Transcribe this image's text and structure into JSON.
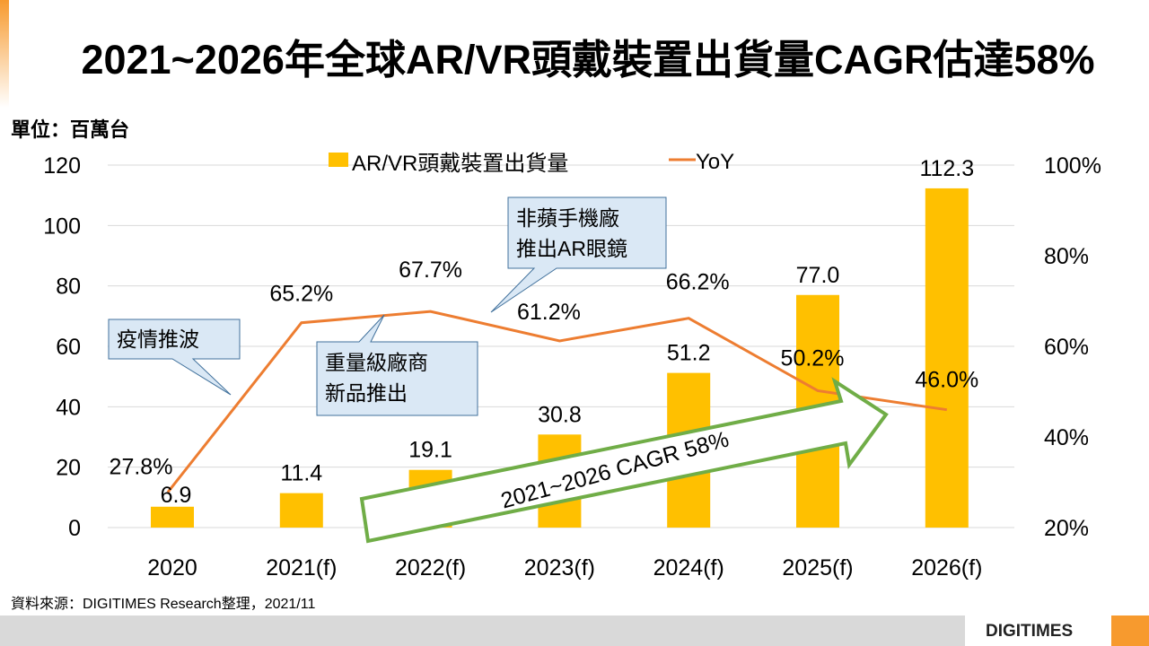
{
  "title": "2021~2026年全球AR/VR頭戴裝置出貨量CAGR估達58%",
  "source": "資料來源：DIGITIMES Research整理，2021/11",
  "logo": "DIGITIMES",
  "colors": {
    "bar": "#FFC000",
    "line": "#ED7D31",
    "arrow": "#70AD47",
    "accent": "#F79A2E",
    "callout_fill": "#DAE8F5",
    "callout_border": "#41719C"
  },
  "chart_data": {
    "type": "bar+line",
    "unit_label": "單位：百萬台",
    "categories": [
      "2020",
      "2021(f)",
      "2022(f)",
      "2023(f)",
      "2024(f)",
      "2025(f)",
      "2026(f)"
    ],
    "series": [
      {
        "name": "AR/VR頭戴裝置出貨量",
        "type": "bar",
        "axis": "left",
        "values": [
          6.9,
          11.4,
          19.1,
          30.8,
          51.2,
          77.0,
          112.3
        ],
        "labels": [
          "6.9",
          "11.4",
          "19.1",
          "30.8",
          "51.2",
          "77.0",
          "112.3"
        ]
      },
      {
        "name": "YoY",
        "type": "line",
        "axis": "right",
        "values": [
          27.8,
          65.2,
          67.7,
          61.2,
          66.2,
          50.2,
          46.0
        ],
        "labels": [
          "27.8%",
          "65.2%",
          "67.7%",
          "61.2%",
          "66.2%",
          "50.2%",
          "46.0%"
        ]
      }
    ],
    "ylim": [
      0,
      120
    ],
    "yticks": [
      "0",
      "20",
      "40",
      "60",
      "80",
      "100",
      "120"
    ],
    "y2lim": [
      20,
      100
    ],
    "y2ticks": [
      "20%",
      "40%",
      "60%",
      "80%",
      "100%"
    ],
    "grid": true,
    "legend": "top-center",
    "annotations": [
      "疫情推波",
      "重量級廠商\n新品推出",
      "非蘋手機廠\n推出AR眼鏡"
    ],
    "arrow_label": "2021~2026 CAGR 58%"
  }
}
